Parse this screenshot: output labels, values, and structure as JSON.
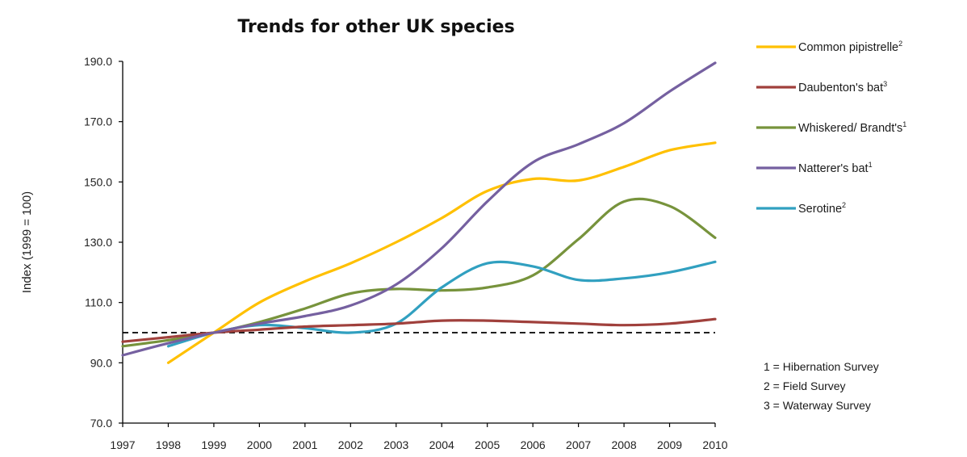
{
  "chart_data": {
    "type": "line",
    "title": "Trends for other UK species",
    "ylabel": "Index (1999 = 100)",
    "xlabel": "",
    "ylim": [
      70,
      190
    ],
    "yticks": [
      "70.0",
      "90.0",
      "110.0",
      "130.0",
      "150.0",
      "170.0",
      "190.0"
    ],
    "categories": [
      "1997",
      "1998",
      "1999",
      "2000",
      "2001",
      "2002",
      "2003",
      "2004",
      "2005",
      "2006",
      "2007",
      "2008",
      "2009",
      "2010"
    ],
    "baseline": {
      "value": 100,
      "style": "dashed",
      "color": "#000000"
    },
    "legend_position": "right",
    "series": [
      {
        "name": "Common pipistrelle",
        "sup": "2",
        "color": "#FFC000",
        "x": [
          "1998",
          "1999",
          "2000",
          "2001",
          "2002",
          "2003",
          "2004",
          "2005",
          "2006",
          "2007",
          "2008",
          "2009",
          "2010"
        ],
        "values": [
          90,
          100,
          110,
          117,
          123,
          130,
          138,
          147,
          151,
          150.5,
          155,
          160.5,
          163
        ]
      },
      {
        "name": "Daubenton's bat",
        "sup": "3",
        "color": "#A0403C",
        "x": [
          "1997",
          "1998",
          "1999",
          "2000",
          "2001",
          "2002",
          "2003",
          "2004",
          "2005",
          "2006",
          "2007",
          "2008",
          "2009",
          "2010"
        ],
        "values": [
          97,
          98.5,
          100,
          101,
          102,
          102.5,
          103,
          104,
          104,
          103.5,
          103,
          102.5,
          103,
          104.5
        ]
      },
      {
        "name": "Whiskered/ Brandt's",
        "sup": "1",
        "color": "#77933C",
        "x": [
          "1997",
          "1998",
          "1999",
          "2000",
          "2001",
          "2002",
          "2003",
          "2004",
          "2005",
          "2006",
          "2007",
          "2008",
          "2009",
          "2010"
        ],
        "values": [
          95.5,
          97.5,
          100,
          103.5,
          108,
          113,
          114.5,
          114,
          115,
          119,
          131,
          143.5,
          142,
          131.5
        ]
      },
      {
        "name": "Natterer's bat",
        "sup": "1",
        "color": "#7560A0",
        "x": [
          "1997",
          "1998",
          "1999",
          "2000",
          "2001",
          "2002",
          "2003",
          "2004",
          "2005",
          "2006",
          "2007",
          "2008",
          "2009",
          "2010"
        ],
        "values": [
          92.5,
          96.5,
          100,
          103,
          105.5,
          109,
          116,
          128,
          143.5,
          156.5,
          162.5,
          169.5,
          180,
          189.5
        ]
      },
      {
        "name": "Serotine",
        "sup": "2",
        "color": "#31A0C0",
        "x": [
          "1998",
          "1999",
          "2000",
          "2001",
          "2002",
          "2003",
          "2004",
          "2005",
          "2006",
          "2007",
          "2008",
          "2009",
          "2010"
        ],
        "values": [
          95.5,
          100,
          102.5,
          101.5,
          100,
          103,
          115,
          123,
          122,
          117.5,
          118,
          120,
          123.5
        ]
      }
    ],
    "annotations": [
      "1 = Hibernation Survey",
      "2 = Field Survey",
      "3 = Waterway Survey"
    ]
  }
}
